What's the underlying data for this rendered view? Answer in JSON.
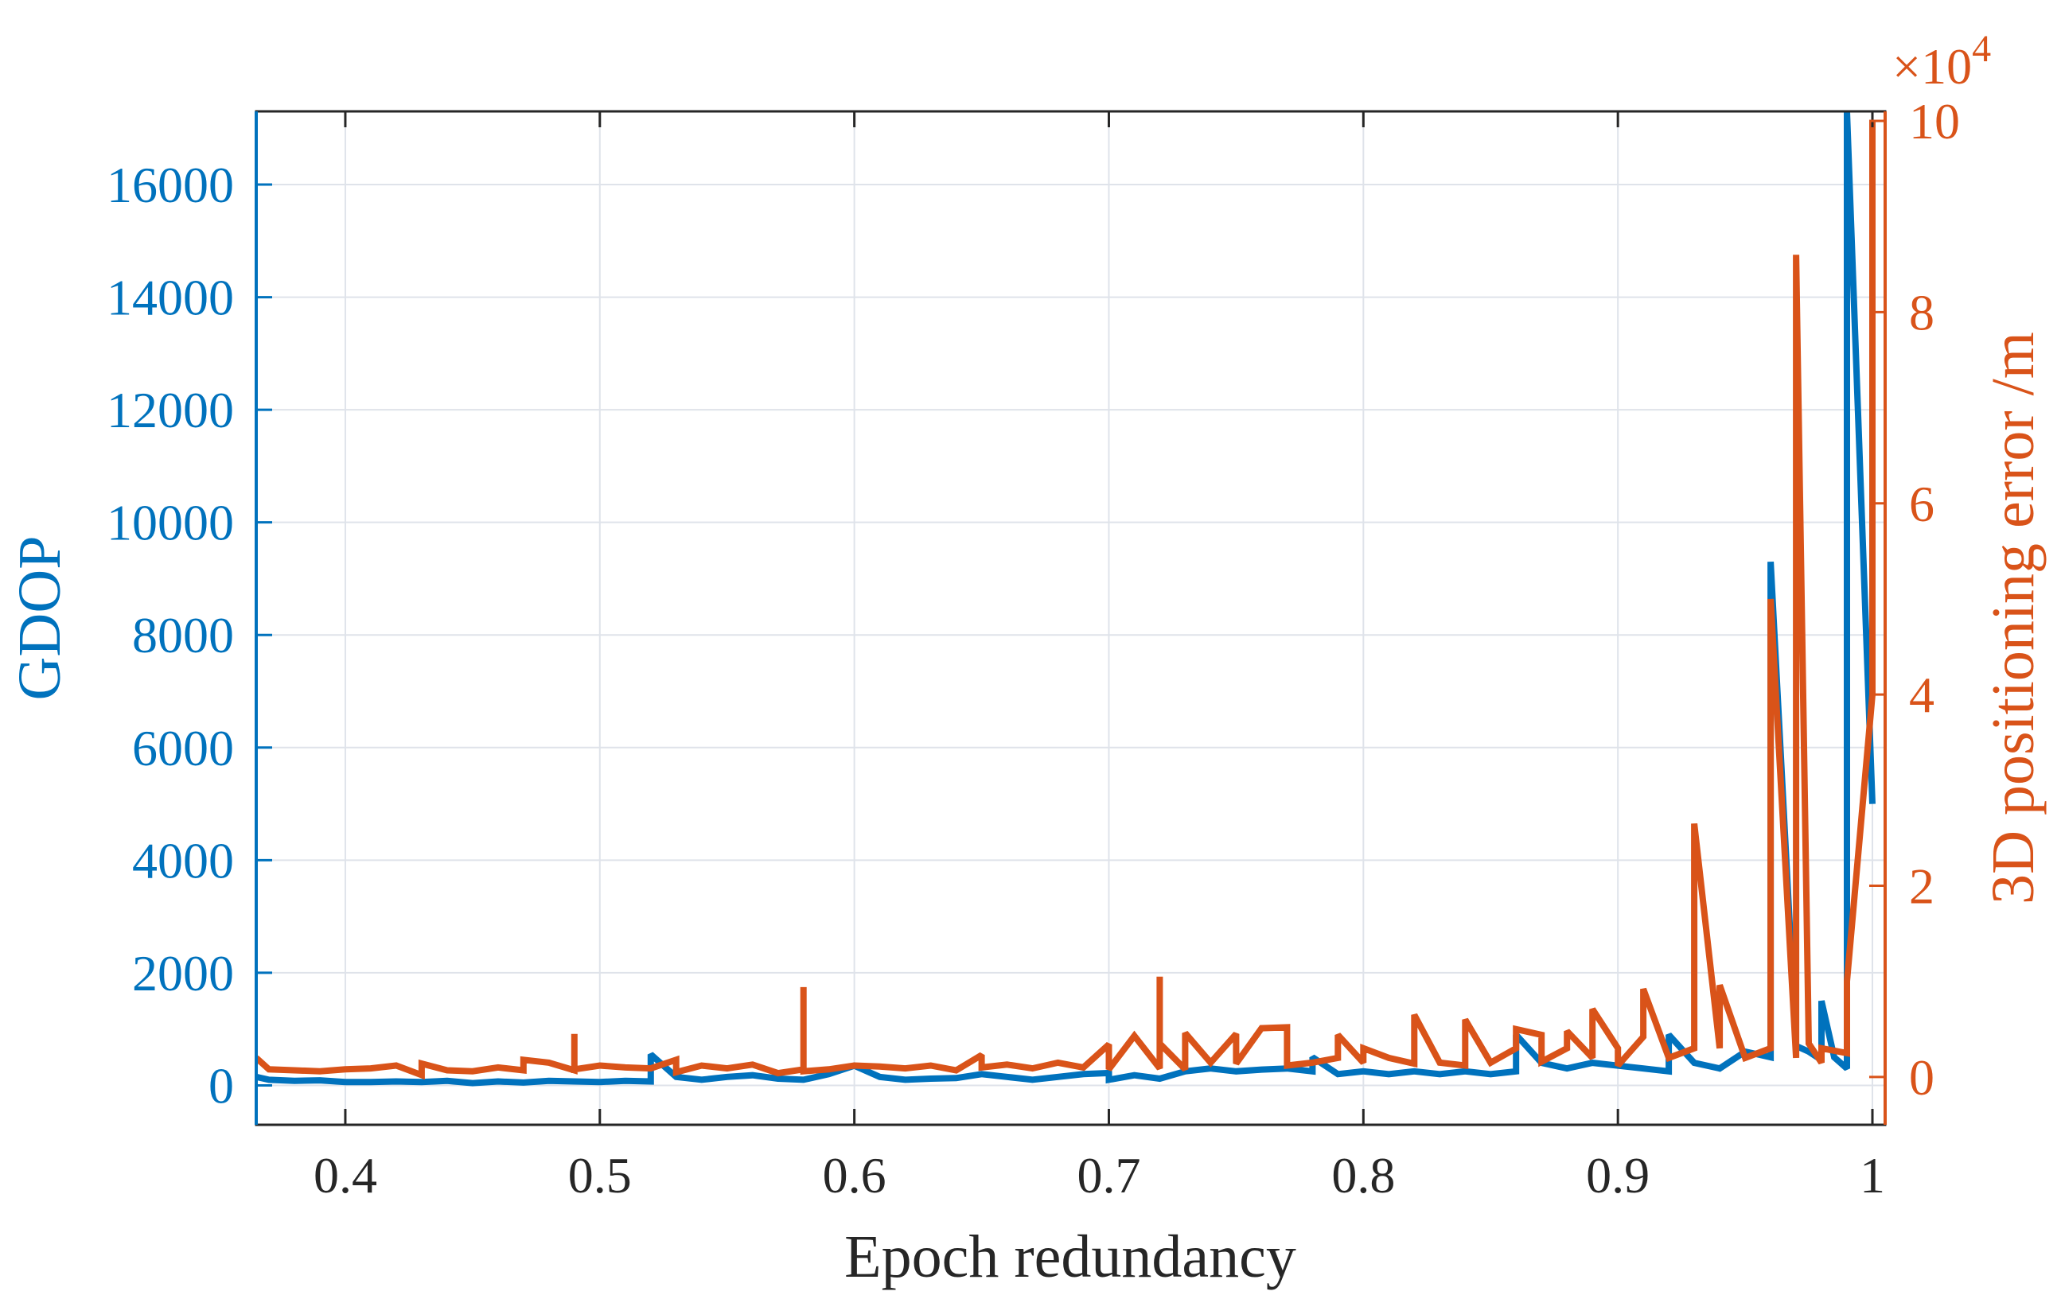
{
  "chart_data": {
    "type": "line",
    "xlabel": "Epoch redundancy",
    "ylabel_left": "GDOP",
    "ylabel_right": "3D positioning error /m",
    "right_exponent": "×10",
    "right_exponent_power": "4",
    "xlim": [
      0.365,
      1.005
    ],
    "ylim_left": [
      -700,
      17300
    ],
    "ylim_right": [
      -5000,
      101000
    ],
    "right_scale": 10000,
    "grid": true,
    "x_ticks": [
      0.4,
      0.5,
      0.6,
      0.7,
      0.8,
      0.9,
      1
    ],
    "x_tick_labels": [
      "0.4",
      "0.5",
      "0.6",
      "0.7",
      "0.8",
      "0.9",
      "1"
    ],
    "left_ticks": [
      0,
      2000,
      4000,
      6000,
      8000,
      10000,
      12000,
      14000,
      16000
    ],
    "left_tick_labels": [
      "0",
      "2000",
      "4000",
      "6000",
      "8000",
      "10000",
      "12000",
      "14000",
      "16000"
    ],
    "right_ticks": [
      0,
      20000,
      40000,
      60000,
      80000,
      100000
    ],
    "right_tick_labels": [
      "0",
      "2",
      "4",
      "6",
      "8",
      "10"
    ],
    "series": [
      {
        "axis": "left",
        "color": "#0072BD",
        "points": [
          [
            0.365,
            150
          ],
          [
            0.37,
            100
          ],
          [
            0.38,
            80
          ],
          [
            0.39,
            90
          ],
          [
            0.4,
            60
          ],
          [
            0.41,
            60
          ],
          [
            0.42,
            70
          ],
          [
            0.43,
            60
          ],
          [
            0.44,
            80
          ],
          [
            0.45,
            40
          ],
          [
            0.46,
            70
          ],
          [
            0.47,
            50
          ],
          [
            0.48,
            80
          ],
          [
            0.49,
            70
          ],
          [
            0.5,
            60
          ],
          [
            0.51,
            80
          ],
          [
            0.52,
            70
          ],
          [
            0.52,
            550
          ],
          [
            0.53,
            150
          ],
          [
            0.54,
            100
          ],
          [
            0.55,
            150
          ],
          [
            0.56,
            180
          ],
          [
            0.57,
            120
          ],
          [
            0.58,
            100
          ],
          [
            0.59,
            200
          ],
          [
            0.6,
            350
          ],
          [
            0.61,
            150
          ],
          [
            0.62,
            100
          ],
          [
            0.63,
            120
          ],
          [
            0.64,
            130
          ],
          [
            0.65,
            200
          ],
          [
            0.66,
            150
          ],
          [
            0.67,
            100
          ],
          [
            0.68,
            150
          ],
          [
            0.69,
            200
          ],
          [
            0.7,
            220
          ],
          [
            0.7,
            100
          ],
          [
            0.71,
            180
          ],
          [
            0.72,
            120
          ],
          [
            0.73,
            250
          ],
          [
            0.74,
            300
          ],
          [
            0.75,
            250
          ],
          [
            0.76,
            280
          ],
          [
            0.77,
            300
          ],
          [
            0.78,
            250
          ],
          [
            0.78,
            500
          ],
          [
            0.79,
            200
          ],
          [
            0.8,
            250
          ],
          [
            0.81,
            200
          ],
          [
            0.82,
            250
          ],
          [
            0.83,
            200
          ],
          [
            0.84,
            250
          ],
          [
            0.85,
            200
          ],
          [
            0.86,
            250
          ],
          [
            0.86,
            900
          ],
          [
            0.87,
            400
          ],
          [
            0.88,
            300
          ],
          [
            0.89,
            400
          ],
          [
            0.9,
            350
          ],
          [
            0.91,
            300
          ],
          [
            0.92,
            250
          ],
          [
            0.92,
            900
          ],
          [
            0.93,
            400
          ],
          [
            0.94,
            300
          ],
          [
            0.95,
            600
          ],
          [
            0.955,
            550
          ],
          [
            0.96,
            500
          ],
          [
            0.96,
            9300
          ],
          [
            0.97,
            700
          ],
          [
            0.975,
            600
          ],
          [
            0.98,
            450
          ],
          [
            0.98,
            1500
          ],
          [
            0.985,
            500
          ],
          [
            0.99,
            300
          ],
          [
            0.99,
            17300
          ],
          [
            1.0,
            5000
          ]
        ]
      },
      {
        "axis": "right",
        "color": "#D95319",
        "points": [
          [
            0.365,
            2000
          ],
          [
            0.37,
            800
          ],
          [
            0.38,
            700
          ],
          [
            0.39,
            600
          ],
          [
            0.4,
            800
          ],
          [
            0.41,
            900
          ],
          [
            0.42,
            1200
          ],
          [
            0.43,
            200
          ],
          [
            0.43,
            1400
          ],
          [
            0.44,
            700
          ],
          [
            0.45,
            600
          ],
          [
            0.46,
            1000
          ],
          [
            0.47,
            700
          ],
          [
            0.47,
            1800
          ],
          [
            0.48,
            1500
          ],
          [
            0.49,
            700
          ],
          [
            0.49,
            4500
          ],
          [
            0.49,
            800
          ],
          [
            0.5,
            1200
          ],
          [
            0.51,
            1000
          ],
          [
            0.52,
            900
          ],
          [
            0.53,
            1800
          ],
          [
            0.53,
            500
          ],
          [
            0.54,
            1200
          ],
          [
            0.55,
            900
          ],
          [
            0.56,
            1300
          ],
          [
            0.57,
            400
          ],
          [
            0.58,
            800
          ],
          [
            0.58,
            9400
          ],
          [
            0.58,
            600
          ],
          [
            0.59,
            800
          ],
          [
            0.6,
            1200
          ],
          [
            0.61,
            1100
          ],
          [
            0.62,
            900
          ],
          [
            0.63,
            1200
          ],
          [
            0.64,
            700
          ],
          [
            0.65,
            2300
          ],
          [
            0.65,
            1000
          ],
          [
            0.66,
            1300
          ],
          [
            0.67,
            900
          ],
          [
            0.68,
            1500
          ],
          [
            0.69,
            1000
          ],
          [
            0.7,
            3400
          ],
          [
            0.7,
            800
          ],
          [
            0.71,
            4300
          ],
          [
            0.72,
            900
          ],
          [
            0.72,
            10500
          ],
          [
            0.72,
            3500
          ],
          [
            0.73,
            800
          ],
          [
            0.73,
            4600
          ],
          [
            0.74,
            1500
          ],
          [
            0.75,
            4500
          ],
          [
            0.75,
            1400
          ],
          [
            0.76,
            5100
          ],
          [
            0.77,
            5200
          ],
          [
            0.77,
            1200
          ],
          [
            0.78,
            1500
          ],
          [
            0.79,
            2000
          ],
          [
            0.79,
            4400
          ],
          [
            0.8,
            1500
          ],
          [
            0.8,
            3000
          ],
          [
            0.81,
            2000
          ],
          [
            0.82,
            1400
          ],
          [
            0.82,
            6500
          ],
          [
            0.83,
            1500
          ],
          [
            0.84,
            1200
          ],
          [
            0.84,
            6000
          ],
          [
            0.85,
            1500
          ],
          [
            0.86,
            3000
          ],
          [
            0.86,
            5000
          ],
          [
            0.87,
            4400
          ],
          [
            0.87,
            1600
          ],
          [
            0.88,
            3000
          ],
          [
            0.88,
            4800
          ],
          [
            0.89,
            2000
          ],
          [
            0.89,
            7100
          ],
          [
            0.9,
            3000
          ],
          [
            0.9,
            1200
          ],
          [
            0.91,
            4200
          ],
          [
            0.91,
            9200
          ],
          [
            0.92,
            2000
          ],
          [
            0.93,
            3000
          ],
          [
            0.93,
            26500
          ],
          [
            0.94,
            3000
          ],
          [
            0.94,
            9600
          ],
          [
            0.95,
            2000
          ],
          [
            0.96,
            3000
          ],
          [
            0.96,
            50000
          ],
          [
            0.97,
            2000
          ],
          [
            0.97,
            86000
          ],
          [
            0.975,
            3500
          ],
          [
            0.98,
            1500
          ],
          [
            0.98,
            3000
          ],
          [
            0.99,
            2500
          ],
          [
            0.99,
            10000
          ],
          [
            1.0,
            40000
          ],
          [
            1.0,
            100000
          ]
        ]
      }
    ]
  }
}
